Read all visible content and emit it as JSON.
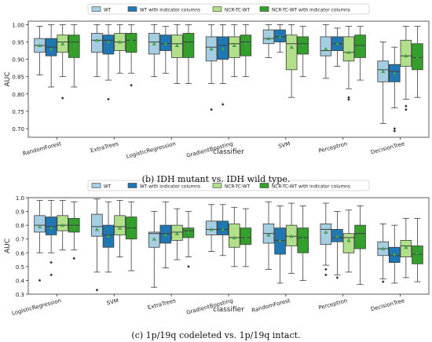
{
  "captions": {
    "b": "(b) IDH mutant vs. IDH wild type.",
    "c": "(c) 1p/19q codeleted vs. 1p/19q intact."
  },
  "colors": {
    "WT": "#a6cee3",
    "WT with indicator columns": "#1f78b4",
    "NCR-TC-WT": "#b2df8a",
    "NCR-TC-WT with indicator columns": "#33a02c"
  },
  "chart_data": [
    {
      "type": "box",
      "xlabel": "classifier",
      "ylabel": "AUC",
      "ylim": [
        0.675,
        1.01
      ],
      "yticks": [
        0.7,
        0.75,
        0.8,
        0.85,
        0.9,
        0.95,
        1.0
      ],
      "ytick_labels": [
        "0.70",
        "0.75",
        "0.80",
        "0.85",
        "0.90",
        "0.95",
        "1.00"
      ],
      "legend": [
        "WT",
        "WT with indicator columns",
        "NCR-TC-WT",
        "NCR-TC-WT with indicator columns"
      ],
      "legend_position": "top-center",
      "categories": [
        "RandomForest",
        "ExtraTrees",
        "LogisticRegression",
        "GradientBoosting",
        "SVM",
        "Perceptron",
        "DecisionTree"
      ],
      "boxes": [
        [
          {
            "q1": 0.92,
            "med": 0.94,
            "q3": 0.96,
            "wlo": 0.855,
            "whi": 0.995,
            "mean": 0.94,
            "fliers": []
          },
          {
            "q1": 0.91,
            "med": 0.935,
            "q3": 0.96,
            "wlo": 0.82,
            "whi": 1.0,
            "mean": 0.93,
            "fliers": []
          },
          {
            "q1": 0.92,
            "med": 0.95,
            "q3": 0.97,
            "wlo": 0.85,
            "whi": 1.0,
            "mean": 0.945,
            "fliers": [
              0.788
            ]
          },
          {
            "q1": 0.905,
            "med": 0.95,
            "q3": 0.97,
            "wlo": 0.82,
            "whi": 1.0,
            "mean": 0.94,
            "fliers": []
          }
        ],
        [
          {
            "q1": 0.92,
            "med": 0.955,
            "q3": 0.975,
            "wlo": 0.85,
            "whi": 1.0,
            "mean": 0.955,
            "fliers": []
          },
          {
            "q1": 0.915,
            "med": 0.955,
            "q3": 0.97,
            "wlo": 0.84,
            "whi": 1.0,
            "mean": 0.95,
            "fliers": [
              0.785
            ]
          },
          {
            "q1": 0.925,
            "med": 0.95,
            "q3": 0.975,
            "wlo": 0.86,
            "whi": 1.0,
            "mean": 0.95,
            "fliers": []
          },
          {
            "q1": 0.92,
            "med": 0.955,
            "q3": 0.975,
            "wlo": 0.86,
            "whi": 1.0,
            "mean": 0.955,
            "fliers": [
              0.825
            ]
          }
        ],
        [
          {
            "q1": 0.915,
            "med": 0.95,
            "q3": 0.975,
            "wlo": 0.85,
            "whi": 1.0,
            "mean": 0.945,
            "fliers": []
          },
          {
            "q1": 0.925,
            "med": 0.945,
            "q3": 0.97,
            "wlo": 0.86,
            "whi": 0.995,
            "mean": 0.945,
            "fliers": []
          },
          {
            "q1": 0.905,
            "med": 0.945,
            "q3": 0.97,
            "wlo": 0.83,
            "whi": 1.0,
            "mean": 0.94,
            "fliers": []
          },
          {
            "q1": 0.905,
            "med": 0.95,
            "q3": 0.975,
            "wlo": 0.83,
            "whi": 1.0,
            "mean": 0.94,
            "fliers": []
          }
        ],
        [
          {
            "q1": 0.895,
            "med": 0.935,
            "q3": 0.965,
            "wlo": 0.83,
            "whi": 1.0,
            "mean": 0.93,
            "fliers": [
              0.755
            ]
          },
          {
            "q1": 0.9,
            "med": 0.94,
            "q3": 0.965,
            "wlo": 0.83,
            "whi": 1.0,
            "mean": 0.93,
            "fliers": [
              0.77
            ]
          },
          {
            "q1": 0.905,
            "med": 0.945,
            "q3": 0.965,
            "wlo": 0.85,
            "whi": 1.0,
            "mean": 0.94,
            "fliers": []
          },
          {
            "q1": 0.91,
            "med": 0.95,
            "q3": 0.97,
            "wlo": 0.85,
            "whi": 1.0,
            "mean": 0.945,
            "fliers": []
          }
        ],
        [
          {
            "q1": 0.945,
            "med": 0.96,
            "q3": 0.985,
            "wlo": 0.905,
            "whi": 1.0,
            "mean": 0.96,
            "fliers": []
          },
          {
            "q1": 0.95,
            "med": 0.965,
            "q3": 0.985,
            "wlo": 0.92,
            "whi": 1.0,
            "mean": 0.965,
            "fliers": []
          },
          {
            "q1": 0.87,
            "med": 0.945,
            "q3": 0.97,
            "wlo": 0.79,
            "whi": 1.0,
            "mean": 0.935,
            "fliers": []
          },
          {
            "q1": 0.915,
            "med": 0.945,
            "q3": 0.965,
            "wlo": 0.85,
            "whi": 0.995,
            "mean": 0.94,
            "fliers": []
          }
        ],
        [
          {
            "q1": 0.91,
            "med": 0.925,
            "q3": 0.965,
            "wlo": 0.845,
            "whi": 1.0,
            "mean": 0.93,
            "fliers": []
          },
          {
            "q1": 0.925,
            "med": 0.945,
            "q3": 0.965,
            "wlo": 0.88,
            "whi": 0.99,
            "mean": 0.945,
            "fliers": []
          },
          {
            "q1": 0.895,
            "med": 0.92,
            "q3": 0.965,
            "wlo": 0.815,
            "whi": 0.995,
            "mean": 0.92,
            "fliers": [
              0.79,
              0.784
            ]
          },
          {
            "q1": 0.905,
            "med": 0.94,
            "q3": 0.97,
            "wlo": 0.84,
            "whi": 0.995,
            "mean": 0.935,
            "fliers": []
          }
        ],
        [
          {
            "q1": 0.835,
            "med": 0.87,
            "q3": 0.895,
            "wlo": 0.715,
            "whi": 0.95,
            "mean": 0.865,
            "fliers": []
          },
          {
            "q1": 0.835,
            "med": 0.865,
            "q3": 0.885,
            "wlo": 0.76,
            "whi": 0.935,
            "mean": 0.86,
            "fliers": [
              0.7,
              0.693
            ]
          },
          {
            "q1": 0.88,
            "med": 0.91,
            "q3": 0.955,
            "wlo": 0.785,
            "whi": 0.995,
            "mean": 0.91,
            "fliers": [
              0.765,
              0.755
            ]
          },
          {
            "q1": 0.87,
            "med": 0.905,
            "q3": 0.945,
            "wlo": 0.79,
            "whi": 0.995,
            "mean": 0.905,
            "fliers": []
          }
        ]
      ]
    },
    {
      "type": "box",
      "xlabel": "classifier",
      "ylabel": "AUC",
      "ylim": [
        0.3,
        1.0
      ],
      "yticks": [
        0.3,
        0.4,
        0.5,
        0.6,
        0.7,
        0.8,
        0.9,
        1.0
      ],
      "ytick_labels": [
        "0.3",
        "0.4",
        "0.5",
        "0.6",
        "0.7",
        "0.8",
        "0.9",
        "1.0"
      ],
      "legend": [
        "WT",
        "WT with indicator columns",
        "NCR-TC-WT",
        "NCR-TC-WT with indicator columns"
      ],
      "legend_position": "top-center",
      "categories": [
        "LogisticRegression",
        "SVM",
        "ExtraTrees",
        "GradientBoosting",
        "RandomForest",
        "Perceptron",
        "DecisionTree"
      ],
      "boxes": [
        [
          {
            "q1": 0.75,
            "med": 0.8,
            "q3": 0.87,
            "wlo": 0.6,
            "whi": 0.98,
            "mean": 0.79,
            "fliers": [
              0.4
            ]
          },
          {
            "q1": 0.73,
            "med": 0.79,
            "q3": 0.86,
            "wlo": 0.6,
            "whi": 0.98,
            "mean": 0.78,
            "fliers": [
              0.53,
              0.44
            ]
          },
          {
            "q1": 0.76,
            "med": 0.8,
            "q3": 0.87,
            "wlo": 0.62,
            "whi": 0.98,
            "mean": 0.8,
            "fliers": []
          },
          {
            "q1": 0.75,
            "med": 0.8,
            "q3": 0.85,
            "wlo": 0.62,
            "whi": 0.97,
            "mean": 0.79,
            "fliers": [
              0.56
            ]
          }
        ],
        [
          {
            "q1": 0.72,
            "med": 0.79,
            "q3": 0.88,
            "wlo": 0.46,
            "whi": 0.99,
            "mean": 0.77,
            "fliers": [
              0.33
            ]
          },
          {
            "q1": 0.64,
            "med": 0.73,
            "q3": 0.8,
            "wlo": 0.46,
            "whi": 0.97,
            "mean": 0.72,
            "fliers": []
          },
          {
            "q1": 0.73,
            "med": 0.79,
            "q3": 0.87,
            "wlo": 0.57,
            "whi": 0.98,
            "mean": 0.78,
            "fliers": []
          },
          {
            "q1": 0.7,
            "med": 0.78,
            "q3": 0.86,
            "wlo": 0.47,
            "whi": 0.97,
            "mean": 0.77,
            "fliers": []
          }
        ],
        [
          {
            "q1": 0.64,
            "med": 0.74,
            "q3": 0.75,
            "wlo": 0.35,
            "whi": 0.9,
            "mean": 0.7,
            "fliers": []
          },
          {
            "q1": 0.67,
            "med": 0.74,
            "q3": 0.8,
            "wlo": 0.49,
            "whi": 0.97,
            "mean": 0.73,
            "fliers": []
          },
          {
            "q1": 0.69,
            "med": 0.75,
            "q3": 0.8,
            "wlo": 0.55,
            "whi": 0.92,
            "mean": 0.74,
            "fliers": []
          },
          {
            "q1": 0.71,
            "med": 0.76,
            "q3": 0.78,
            "wlo": 0.57,
            "whi": 0.9,
            "mean": 0.75,
            "fliers": [
              0.5
            ]
          }
        ],
        [
          {
            "q1": 0.73,
            "med": 0.77,
            "q3": 0.83,
            "wlo": 0.61,
            "whi": 0.95,
            "mean": 0.77,
            "fliers": []
          },
          {
            "q1": 0.73,
            "med": 0.77,
            "q3": 0.83,
            "wlo": 0.58,
            "whi": 0.95,
            "mean": 0.77,
            "fliers": []
          },
          {
            "q1": 0.64,
            "med": 0.71,
            "q3": 0.81,
            "wlo": 0.5,
            "whi": 0.93,
            "mean": 0.71,
            "fliers": []
          },
          {
            "q1": 0.66,
            "med": 0.71,
            "q3": 0.78,
            "wlo": 0.5,
            "whi": 0.92,
            "mean": 0.71,
            "fliers": []
          }
        ],
        [
          {
            "q1": 0.67,
            "med": 0.74,
            "q3": 0.81,
            "wlo": 0.48,
            "whi": 0.97,
            "mean": 0.73,
            "fliers": []
          },
          {
            "q1": 0.59,
            "med": 0.69,
            "q3": 0.78,
            "wlo": 0.38,
            "whi": 0.94,
            "mean": 0.69,
            "fliers": []
          },
          {
            "q1": 0.65,
            "med": 0.72,
            "q3": 0.8,
            "wlo": 0.45,
            "whi": 0.96,
            "mean": 0.72,
            "fliers": []
          },
          {
            "q1": 0.6,
            "med": 0.71,
            "q3": 0.78,
            "wlo": 0.4,
            "whi": 0.94,
            "mean": 0.7,
            "fliers": []
          }
        ],
        [
          {
            "q1": 0.66,
            "med": 0.77,
            "q3": 0.81,
            "wlo": 0.51,
            "whi": 0.96,
            "mean": 0.75,
            "fliers": [
              0.48,
              0.44
            ]
          },
          {
            "q1": 0.68,
            "med": 0.71,
            "q3": 0.77,
            "wlo": 0.44,
            "whi": 0.9,
            "mean": 0.72,
            "fliers": [
              0.42
            ]
          },
          {
            "q1": 0.6,
            "med": 0.71,
            "q3": 0.74,
            "wlo": 0.46,
            "whi": 0.91,
            "mean": 0.69,
            "fliers": []
          },
          {
            "q1": 0.63,
            "med": 0.74,
            "q3": 0.8,
            "wlo": 0.37,
            "whi": 0.94,
            "mean": 0.72,
            "fliers": []
          }
        ],
        [
          {
            "q1": 0.58,
            "med": 0.63,
            "q3": 0.68,
            "wlo": 0.41,
            "whi": 0.81,
            "mean": 0.63,
            "fliers": [
              0.39
            ]
          },
          {
            "q1": 0.53,
            "med": 0.58,
            "q3": 0.64,
            "wlo": 0.38,
            "whi": 0.8,
            "mean": 0.59,
            "fliers": []
          },
          {
            "q1": 0.57,
            "med": 0.65,
            "q3": 0.69,
            "wlo": 0.42,
            "whi": 0.85,
            "mean": 0.64,
            "fliers": []
          },
          {
            "q1": 0.52,
            "med": 0.59,
            "q3": 0.65,
            "wlo": 0.39,
            "whi": 0.85,
            "mean": 0.6,
            "fliers": []
          }
        ]
      ]
    }
  ]
}
